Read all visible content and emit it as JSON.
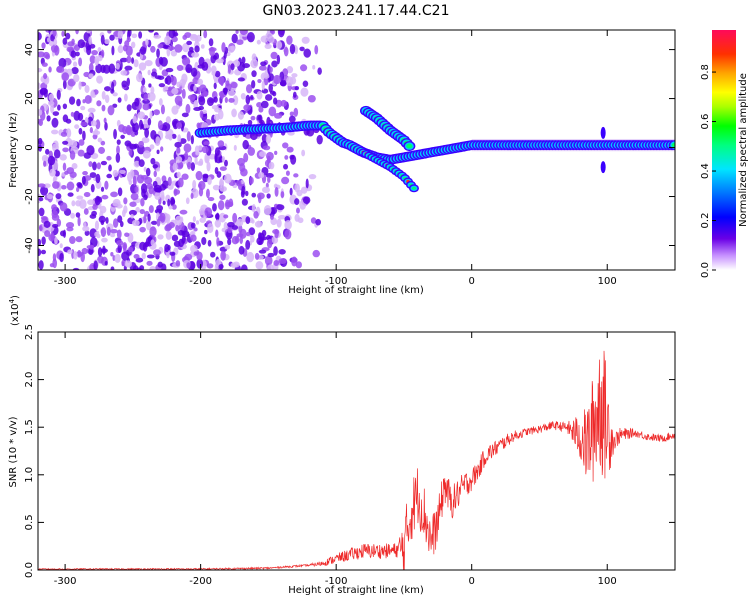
{
  "title": "GN03.2023.241.17.44.C21",
  "chart_data": [
    {
      "id": "spectrogram",
      "type": "heatmap",
      "xlabel": "Height of straight line (km)",
      "ylabel": "Frequency (Hz)",
      "xlim": [
        -320,
        150
      ],
      "ylim": [
        -50,
        48
      ],
      "xticks": [
        -300,
        -200,
        -100,
        0,
        100
      ],
      "yticks": [
        -40,
        -20,
        0,
        20,
        40
      ],
      "colorbar": {
        "label": "Normalized spectral amplitude",
        "range": [
          0,
          0.97
        ],
        "ticks": [
          0.0,
          0.2,
          0.4,
          0.6,
          0.8
        ]
      },
      "colormap": [
        "#ffffff",
        "#d9b3f5",
        "#8a2be2",
        "#5a00e6",
        "#0000ff",
        "#00bfff",
        "#00ffff",
        "#00ff7f",
        "#00ff00",
        "#7fff00",
        "#ffff00",
        "#ffa500",
        "#ff4000",
        "#ff0040"
      ],
      "features": {
        "noise_region_x": [
          -320,
          -110
        ],
        "main_track": [
          [
            -200,
            6
          ],
          [
            -180,
            7
          ],
          [
            -160,
            7.5
          ],
          [
            -140,
            8
          ],
          [
            -120,
            9
          ],
          [
            -110,
            9
          ],
          [
            -105,
            6
          ],
          [
            -100,
            4
          ],
          [
            -95,
            2
          ],
          [
            -90,
            1
          ],
          [
            -80,
            -2
          ],
          [
            -70,
            -4
          ],
          [
            -60,
            -5
          ],
          [
            -50,
            -4
          ],
          [
            -40,
            -3
          ],
          [
            -30,
            -2
          ],
          [
            -20,
            -1
          ],
          [
            -10,
            0
          ],
          [
            0,
            1
          ],
          [
            20,
            1
          ],
          [
            50,
            1
          ],
          [
            80,
            1
          ],
          [
            100,
            1
          ],
          [
            150,
            1
          ]
        ],
        "upper_branch": [
          [
            -78,
            15
          ],
          [
            -70,
            12
          ],
          [
            -60,
            7
          ],
          [
            -50,
            3
          ],
          [
            -45,
            0
          ]
        ],
        "lower_branch": [
          [
            -80,
            -2
          ],
          [
            -70,
            -5
          ],
          [
            -60,
            -8
          ],
          [
            -50,
            -12
          ],
          [
            -42,
            -17
          ]
        ]
      }
    },
    {
      "id": "snr",
      "type": "line",
      "xlabel": "Height of straight line (km)",
      "ylabel": "SNR (10 * v/v)",
      "multiplier": "(x10",
      "multiplier_exp": "4",
      "multiplier_close": ")",
      "color": "#ee2a2a",
      "xlim": [
        -320,
        150
      ],
      "ylim": [
        0,
        2.5
      ],
      "xticks": [
        -300,
        -200,
        -100,
        0,
        100
      ],
      "yticks": [
        0.0,
        0.5,
        1.0,
        1.5,
        2.0,
        2.5
      ],
      "envelope": [
        [
          -320,
          0.01
        ],
        [
          -200,
          0.01
        ],
        [
          -150,
          0.02
        ],
        [
          -120,
          0.05
        ],
        [
          -110,
          0.07
        ],
        [
          -100,
          0.12
        ],
        [
          -90,
          0.16
        ],
        [
          -80,
          0.2
        ],
        [
          -70,
          0.2
        ],
        [
          -60,
          0.2
        ],
        [
          -50,
          0.22
        ],
        [
          -45,
          0.6
        ],
        [
          -40,
          0.8
        ],
        [
          -35,
          0.6
        ],
        [
          -30,
          0.3
        ],
        [
          -25,
          0.5
        ],
        [
          -20,
          0.9
        ],
        [
          -15,
          0.7
        ],
        [
          -10,
          0.8
        ],
        [
          -5,
          0.9
        ],
        [
          0,
          0.95
        ],
        [
          5,
          1.05
        ],
        [
          10,
          1.2
        ],
        [
          20,
          1.3
        ],
        [
          30,
          1.4
        ],
        [
          40,
          1.45
        ],
        [
          50,
          1.48
        ],
        [
          60,
          1.52
        ],
        [
          70,
          1.5
        ],
        [
          80,
          1.4
        ],
        [
          85,
          1.3
        ],
        [
          90,
          1.5
        ],
        [
          95,
          1.8
        ],
        [
          100,
          1.5
        ],
        [
          105,
          1.35
        ],
        [
          110,
          1.42
        ],
        [
          120,
          1.44
        ],
        [
          130,
          1.4
        ],
        [
          140,
          1.38
        ],
        [
          150,
          1.42
        ]
      ],
      "noise": [
        [
          -320,
          0.005
        ],
        [
          -120,
          0.01
        ],
        [
          -100,
          0.05
        ],
        [
          -80,
          0.08
        ],
        [
          -55,
          0.08
        ],
        [
          -50,
          0.35
        ],
        [
          -35,
          0.3
        ],
        [
          -30,
          0.25
        ],
        [
          -20,
          0.2
        ],
        [
          0,
          0.12
        ],
        [
          20,
          0.08
        ],
        [
          40,
          0.04
        ],
        [
          70,
          0.05
        ],
        [
          80,
          0.25
        ],
        [
          90,
          0.6
        ],
        [
          95,
          0.8
        ],
        [
          100,
          0.6
        ],
        [
          105,
          0.1
        ],
        [
          120,
          0.04
        ],
        [
          150,
          0.04
        ]
      ]
    }
  ]
}
